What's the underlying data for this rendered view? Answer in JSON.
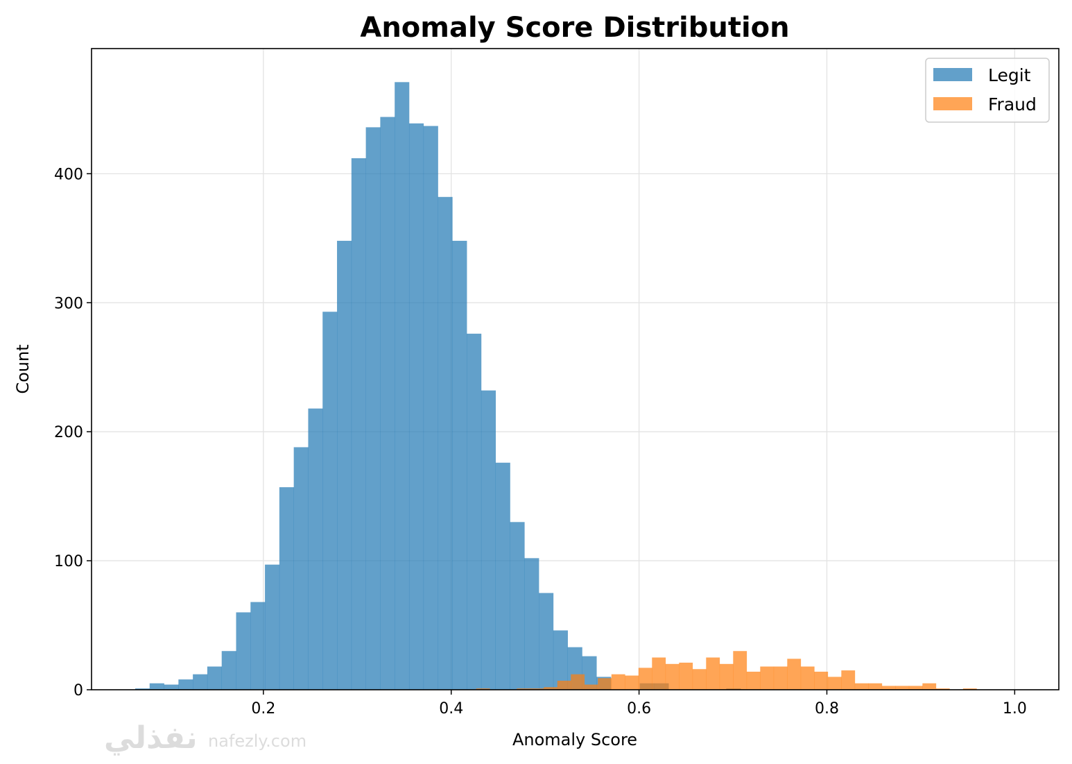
{
  "chart_data": {
    "type": "histogram",
    "title": "Anomaly Score Distribution",
    "xlabel": "Anomaly Score",
    "ylabel": "Count",
    "xlim": [
      0.017,
      1.047
    ],
    "ylim": [
      0,
      497
    ],
    "xticks": [
      0.2,
      0.4,
      0.6,
      0.8,
      1.0
    ],
    "xtick_labels": [
      "0.2",
      "0.4",
      "0.6",
      "0.8",
      "1.0"
    ],
    "yticks": [
      0,
      100,
      200,
      300,
      400
    ],
    "ytick_labels": [
      "0",
      "100",
      "200",
      "300",
      "400"
    ],
    "grid": true,
    "legend_position": "top-right",
    "series": [
      {
        "name": "Legit",
        "color": "#1f77b4",
        "alpha": 0.7,
        "bin_start": 0.0635,
        "bin_width": 0.01535,
        "counts": [
          1,
          5,
          4,
          8,
          12,
          18,
          30,
          60,
          68,
          97,
          157,
          188,
          218,
          293,
          348,
          412,
          436,
          444,
          471,
          439,
          437,
          382,
          348,
          276,
          232,
          176,
          130,
          102,
          75,
          46,
          33,
          26,
          10,
          0,
          0,
          5,
          5,
          0,
          0,
          0,
          0,
          1
        ]
      },
      {
        "name": "Fraud",
        "color": "#ff7f0e",
        "alpha": 0.7,
        "bin_start": 0.4266,
        "bin_width": 0.0144,
        "counts": [
          1,
          0,
          0,
          1,
          1,
          2,
          7,
          12,
          4,
          9,
          12,
          11,
          17,
          25,
          20,
          21,
          16,
          25,
          20,
          30,
          14,
          18,
          18,
          24,
          18,
          14,
          10,
          15,
          5,
          5,
          3,
          3,
          3,
          5,
          1,
          0,
          1
        ]
      }
    ]
  },
  "watermark": {
    "arabic": "نفذلي",
    "latin": "nafezly.com"
  }
}
